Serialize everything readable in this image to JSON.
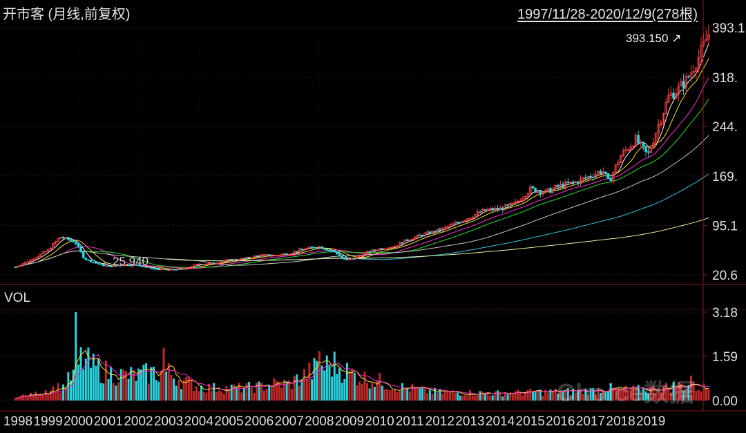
{
  "header": {
    "title": "开市客 (月线,前复权)",
    "range": "1997/11/28-2020/12/9(278根)"
  },
  "annotations": {
    "last_price": "393.150",
    "last_arrow": "↗",
    "min_price": "25.940"
  },
  "volume_panel": {
    "label": "VOL"
  },
  "watermark": "Choice数据",
  "colors": {
    "up": "#ff4040",
    "down": "#2ad4e0",
    "grid": "#3a1010",
    "axis_text": "#e0e0e0",
    "ma": [
      "#ffffff",
      "#f5e62a",
      "#ff2ad4",
      "#2ae02a",
      "#c8c8c8",
      "#30c8e8",
      "#f0f0a0"
    ]
  },
  "chart_data": [
    {
      "type": "candlestick",
      "title": "开市客 (月线,前复权)",
      "x_tick_labels": [
        "1998",
        "1999",
        "2000",
        "2001",
        "2002",
        "2003",
        "2004",
        "2005",
        "2006",
        "2007",
        "2008",
        "2009",
        "2010",
        "2011",
        "2012",
        "2013",
        "2014",
        "2015",
        "2016",
        "2017",
        "2018",
        "2019"
      ],
      "y_tick_labels": [
        "393.1",
        "318.",
        "244.",
        "169.",
        "95.1",
        "20.6"
      ],
      "y_ticks": [
        393.1,
        318.4,
        244.1,
        169.6,
        95.1,
        20.6
      ],
      "ylim": [
        20.6,
        393.1
      ],
      "anchor_prices": [
        [
          1997.9,
          32
        ],
        [
          1998.5,
          45
        ],
        [
          1999.0,
          58
        ],
        [
          1999.4,
          78
        ],
        [
          1999.9,
          70
        ],
        [
          2000.2,
          45
        ],
        [
          2000.6,
          38
        ],
        [
          2001.0,
          33
        ],
        [
          2001.5,
          36
        ],
        [
          2002.0,
          35
        ],
        [
          2002.6,
          29
        ],
        [
          2003.0,
          28
        ],
        [
          2003.5,
          30
        ],
        [
          2004.0,
          37
        ],
        [
          2004.5,
          38
        ],
        [
          2005.0,
          43
        ],
        [
          2005.5,
          45
        ],
        [
          2006.0,
          50
        ],
        [
          2006.5,
          50
        ],
        [
          2007.0,
          53
        ],
        [
          2007.5,
          60
        ],
        [
          2008.0,
          63
        ],
        [
          2008.5,
          55
        ],
        [
          2008.9,
          42
        ],
        [
          2009.2,
          46
        ],
        [
          2009.6,
          55
        ],
        [
          2010.0,
          60
        ],
        [
          2010.5,
          64
        ],
        [
          2011.0,
          75
        ],
        [
          2011.5,
          82
        ],
        [
          2012.0,
          88
        ],
        [
          2012.5,
          98
        ],
        [
          2013.0,
          108
        ],
        [
          2013.5,
          118
        ],
        [
          2014.0,
          120
        ],
        [
          2014.5,
          128
        ],
        [
          2015.0,
          150
        ],
        [
          2015.5,
          145
        ],
        [
          2016.0,
          155
        ],
        [
          2016.5,
          160
        ],
        [
          2017.0,
          170
        ],
        [
          2017.4,
          178
        ],
        [
          2017.6,
          160
        ],
        [
          2018.0,
          200
        ],
        [
          2018.5,
          225
        ],
        [
          2018.9,
          200
        ],
        [
          2019.2,
          240
        ],
        [
          2019.6,
          290
        ],
        [
          2019.9,
          300
        ],
        [
          2020.2,
          315
        ],
        [
          2020.6,
          350
        ],
        [
          2020.93,
          385
        ]
      ],
      "highest_marker": 393.15,
      "lowest_marker": 25.94
    },
    {
      "type": "bar",
      "title": "VOL",
      "y_tick_labels": [
        "3.18",
        "1.59",
        "0.00"
      ],
      "y_ticks": [
        3.18,
        1.59,
        0.0
      ],
      "ylim": [
        0,
        3.18
      ],
      "anchor_volumes": [
        [
          1997.9,
          0.15
        ],
        [
          1998.5,
          0.2
        ],
        [
          1999.0,
          0.4
        ],
        [
          1999.5,
          0.5
        ],
        [
          1999.9,
          1.0
        ],
        [
          2000.1,
          1.5
        ],
        [
          2000.5,
          1.2
        ],
        [
          2001.0,
          1.0
        ],
        [
          2001.5,
          0.9
        ],
        [
          2002.0,
          0.9
        ],
        [
          2002.5,
          1.0
        ],
        [
          2003.0,
          1.0
        ],
        [
          2003.5,
          0.7
        ],
        [
          2004.0,
          0.5
        ],
        [
          2004.5,
          0.45
        ],
        [
          2005.0,
          0.45
        ],
        [
          2005.5,
          0.45
        ],
        [
          2006.0,
          0.5
        ],
        [
          2006.5,
          0.6
        ],
        [
          2007.0,
          0.6
        ],
        [
          2007.5,
          0.9
        ],
        [
          2008.0,
          1.2
        ],
        [
          2008.5,
          1.3
        ],
        [
          2009.0,
          1.0
        ],
        [
          2009.5,
          0.8
        ],
        [
          2010.0,
          0.7
        ],
        [
          2010.5,
          0.5
        ],
        [
          2011.0,
          0.45
        ],
        [
          2011.5,
          0.35
        ],
        [
          2012.0,
          0.3
        ],
        [
          2013.0,
          0.28
        ],
        [
          2014.0,
          0.26
        ],
        [
          2015.0,
          0.3
        ],
        [
          2016.0,
          0.32
        ],
        [
          2017.0,
          0.35
        ],
        [
          2017.5,
          0.45
        ],
        [
          2018.0,
          0.38
        ],
        [
          2019.0,
          0.4
        ],
        [
          2020.0,
          0.55
        ],
        [
          2020.9,
          0.45
        ]
      ],
      "spikes": [
        [
          1999.9,
          3.18
        ],
        [
          2002.8,
          1.9
        ],
        [
          2008.0,
          1.78
        ],
        [
          2020.3,
          0.9
        ]
      ]
    }
  ]
}
